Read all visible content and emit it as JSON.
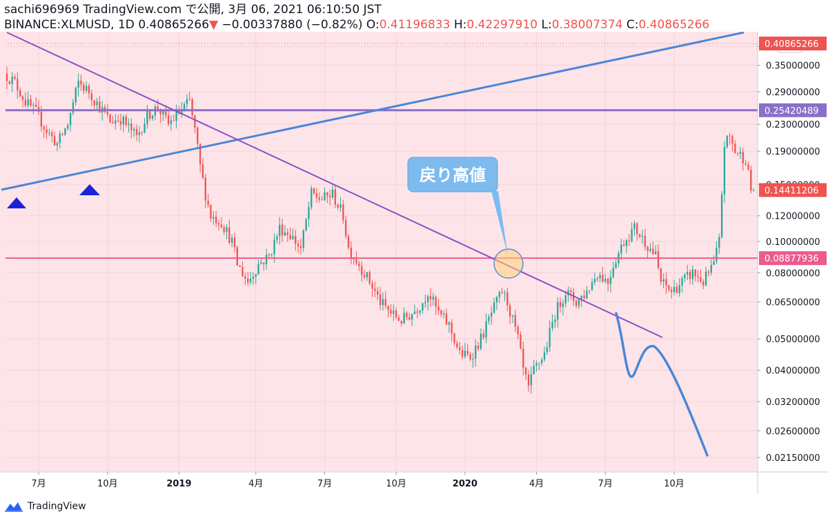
{
  "header": {
    "line1": "sachi696969 TradingView.com で公開, 3月 06, 2021 06:10:50 JST",
    "symbol": "BINANCE:XLMUSD, 1D",
    "last": "0.40865266",
    "change_arrow": "▼",
    "change": "−0.00337880 (−0.82%)",
    "o_label": "O:",
    "o_value": "0.41196833",
    "h_label": "H:",
    "h_value": "0.42297910",
    "l_label": "L:",
    "l_value": "0.38007374",
    "c_label": "C:",
    "c_value": "0.40865266"
  },
  "footer": {
    "brand": "TradingView"
  },
  "colors": {
    "background": "#fde4e8",
    "grid": "#f3d3da",
    "up": "#26a69a",
    "down": "#ef5350",
    "trendline_blue": "#4a86d8",
    "trendline_purple": "#8a4fc8",
    "horizontal_purple": "#8a6fc8",
    "horizontal_pink": "#ec5a8e",
    "last_price": "#ef5350",
    "callout": "#7dbbef",
    "arrow_marker": "#1a24d6"
  },
  "chart_data": {
    "type": "candlestick",
    "symbol": "BINANCE:XLMUSD",
    "interval": "1D",
    "currency": "USD",
    "scale": "log",
    "y_ticks": [
      "0.4",
      "0.35000000",
      "0.29000000",
      "0.23000000",
      "0.19000000",
      "0.15000000",
      "0.12000000",
      "0.10000000",
      "0.08000000",
      "0.06500000",
      "0.05000000",
      "0.04000000",
      "0.03200000",
      "0.02600000",
      "0.02150000"
    ],
    "x_ticks": [
      "7月",
      "10月",
      "2019",
      "4月",
      "7月",
      "10月",
      "2020",
      "4月",
      "7月",
      "10月"
    ],
    "price_labels": [
      {
        "value": "0.40865266",
        "role": "last"
      },
      {
        "value": "0.25420489",
        "role": "horizontal-purple"
      },
      {
        "value": "0.14411206",
        "role": "current"
      },
      {
        "value": "0.08877936",
        "role": "horizontal-pink"
      }
    ],
    "horizontal_lines": [
      0.2542,
      0.08878
    ],
    "dotted_line": 0.40865,
    "annotations": [
      {
        "text": "戻り高値",
        "type": "callout"
      }
    ],
    "price_path": [
      [
        0,
        0.33
      ],
      [
        4,
        0.31
      ],
      [
        8,
        0.27
      ],
      [
        12,
        0.25
      ],
      [
        16,
        0.22
      ],
      [
        20,
        0.2
      ],
      [
        24,
        0.23
      ],
      [
        28,
        0.31
      ],
      [
        32,
        0.29
      ],
      [
        36,
        0.26
      ],
      [
        40,
        0.235
      ],
      [
        44,
        0.24
      ],
      [
        48,
        0.22
      ],
      [
        50,
        0.21
      ],
      [
        54,
        0.245
      ],
      [
        58,
        0.26
      ],
      [
        62,
        0.23
      ],
      [
        66,
        0.25
      ],
      [
        70,
        0.27
      ],
      [
        72,
        0.22
      ],
      [
        74,
        0.17
      ],
      [
        76,
        0.14
      ],
      [
        78,
        0.12
      ],
      [
        82,
        0.115
      ],
      [
        86,
        0.1
      ],
      [
        88,
        0.085
      ],
      [
        92,
        0.075
      ],
      [
        96,
        0.085
      ],
      [
        100,
        0.09
      ],
      [
        104,
        0.11
      ],
      [
        108,
        0.105
      ],
      [
        112,
        0.095
      ],
      [
        116,
        0.14
      ],
      [
        120,
        0.135
      ],
      [
        124,
        0.14
      ],
      [
        128,
        0.12
      ],
      [
        130,
        0.095
      ],
      [
        134,
        0.085
      ],
      [
        138,
        0.075
      ],
      [
        142,
        0.065
      ],
      [
        146,
        0.06
      ],
      [
        150,
        0.057
      ],
      [
        154,
        0.06
      ],
      [
        158,
        0.065
      ],
      [
        160,
        0.07
      ],
      [
        164,
        0.06
      ],
      [
        168,
        0.055
      ],
      [
        172,
        0.045
      ],
      [
        176,
        0.044
      ],
      [
        180,
        0.05
      ],
      [
        184,
        0.06
      ],
      [
        188,
        0.07
      ],
      [
        190,
        0.065
      ],
      [
        194,
        0.05
      ],
      [
        196,
        0.04
      ],
      [
        198,
        0.035
      ],
      [
        200,
        0.04
      ],
      [
        204,
        0.045
      ],
      [
        208,
        0.06
      ],
      [
        212,
        0.07
      ],
      [
        216,
        0.065
      ],
      [
        220,
        0.07
      ],
      [
        224,
        0.08
      ],
      [
        228,
        0.075
      ],
      [
        230,
        0.085
      ],
      [
        234,
        0.1
      ],
      [
        238,
        0.11
      ],
      [
        242,
        0.1
      ],
      [
        246,
        0.09
      ],
      [
        248,
        0.075
      ],
      [
        252,
        0.07
      ],
      [
        256,
        0.075
      ],
      [
        260,
        0.08
      ],
      [
        264,
        0.075
      ],
      [
        268,
        0.085
      ],
      [
        270,
        0.1
      ],
      [
        272,
        0.2
      ],
      [
        274,
        0.21
      ],
      [
        276,
        0.19
      ],
      [
        280,
        0.18
      ],
      [
        282,
        0.144
      ]
    ]
  }
}
